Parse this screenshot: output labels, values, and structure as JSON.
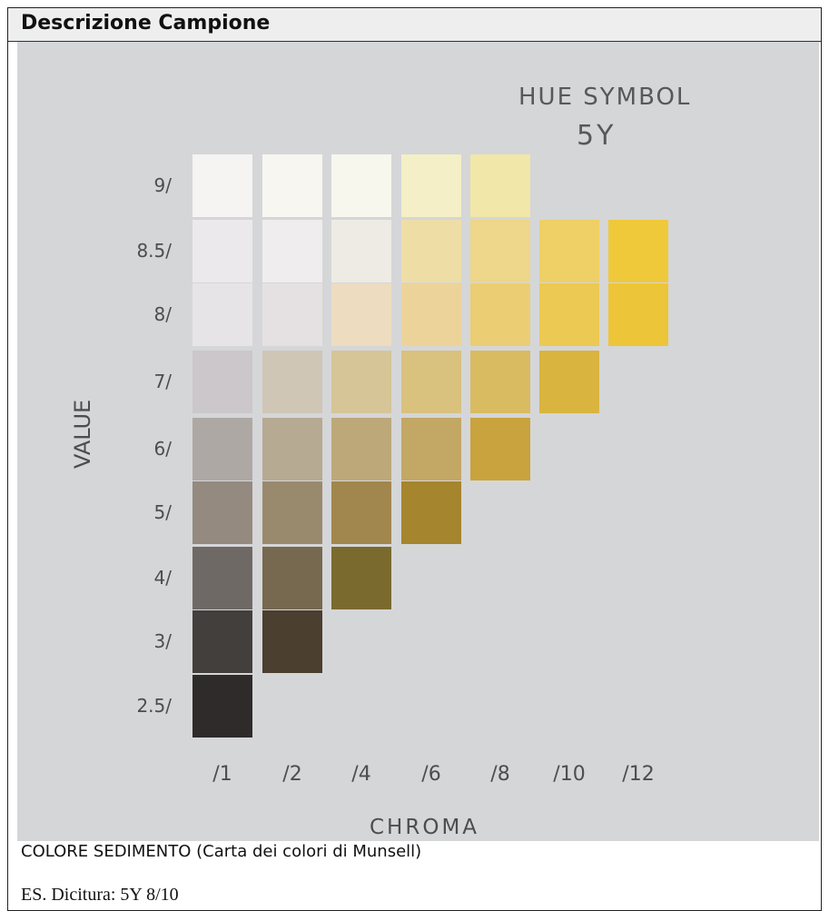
{
  "header": {
    "title": "Descrizione Campione"
  },
  "chart": {
    "hue_label": "HUE SYMBOL",
    "hue_value": "5Y",
    "y_axis_title": "VALUE",
    "x_axis_title": "CHROMA"
  },
  "chart_data": {
    "type": "heatmap",
    "title": "HUE SYMBOL 5Y",
    "xlabel": "CHROMA",
    "ylabel": "VALUE",
    "x_ticks": [
      "/1",
      "/2",
      "/4",
      "/6",
      "/8",
      "/10",
      "/12"
    ],
    "y_ticks": [
      "9/",
      "8.5/",
      "8/",
      "7/",
      "6/",
      "5/",
      "4/",
      "3/",
      "2.5/"
    ],
    "chips": [
      {
        "value": "9/",
        "chroma": "/1",
        "color": "#f5f4f3"
      },
      {
        "value": "9/",
        "chroma": "/2",
        "color": "#f7f6f1"
      },
      {
        "value": "9/",
        "chroma": "/4",
        "color": "#f8f7ee"
      },
      {
        "value": "9/",
        "chroma": "/6",
        "color": "#f4efc6"
      },
      {
        "value": "9/",
        "chroma": "/8",
        "color": "#f1e7a8"
      },
      {
        "value": "8.5/",
        "chroma": "/1",
        "color": "#ebe9eb"
      },
      {
        "value": "8.5/",
        "chroma": "/2",
        "color": "#efeded"
      },
      {
        "value": "8.5/",
        "chroma": "/4",
        "color": "#eeebe4"
      },
      {
        "value": "8.5/",
        "chroma": "/6",
        "color": "#efdda6"
      },
      {
        "value": "8.5/",
        "chroma": "/8",
        "color": "#eed68a"
      },
      {
        "value": "8.5/",
        "chroma": "/10",
        "color": "#eed066"
      },
      {
        "value": "8.5/",
        "chroma": "/12",
        "color": "#efc93a"
      },
      {
        "value": "8/",
        "chroma": "/1",
        "color": "#e7e4e7"
      },
      {
        "value": "8/",
        "chroma": "/2",
        "color": "#e5e1e3"
      },
      {
        "value": "8/",
        "chroma": "/4",
        "color": "#eddcc0"
      },
      {
        "value": "8/",
        "chroma": "/6",
        "color": "#ecd399"
      },
      {
        "value": "8/",
        "chroma": "/8",
        "color": "#ebcd74"
      },
      {
        "value": "8/",
        "chroma": "/10",
        "color": "#ebc953"
      },
      {
        "value": "8/",
        "chroma": "/12",
        "color": "#edc538"
      },
      {
        "value": "7/",
        "chroma": "/1",
        "color": "#cbc7ca"
      },
      {
        "value": "7/",
        "chroma": "/2",
        "color": "#cfc6b6"
      },
      {
        "value": "7/",
        "chroma": "/4",
        "color": "#d6c597"
      },
      {
        "value": "7/",
        "chroma": "/6",
        "color": "#d9c17e"
      },
      {
        "value": "7/",
        "chroma": "/8",
        "color": "#d9bb62"
      },
      {
        "value": "7/",
        "chroma": "/10",
        "color": "#d9b43f"
      },
      {
        "value": "6/",
        "chroma": "/1",
        "color": "#aea8a4"
      },
      {
        "value": "6/",
        "chroma": "/2",
        "color": "#b6aa92"
      },
      {
        "value": "6/",
        "chroma": "/4",
        "color": "#bda87a"
      },
      {
        "value": "6/",
        "chroma": "/6",
        "color": "#c3a765"
      },
      {
        "value": "6/",
        "chroma": "/8",
        "color": "#c9a33e"
      },
      {
        "value": "5/",
        "chroma": "/1",
        "color": "#948a80"
      },
      {
        "value": "5/",
        "chroma": "/2",
        "color": "#998a6e"
      },
      {
        "value": "5/",
        "chroma": "/4",
        "color": "#a1874e"
      },
      {
        "value": "5/",
        "chroma": "/6",
        "color": "#a5852e"
      },
      {
        "value": "4/",
        "chroma": "/1",
        "color": "#6f6965"
      },
      {
        "value": "4/",
        "chroma": "/2",
        "color": "#76694f"
      },
      {
        "value": "4/",
        "chroma": "/4",
        "color": "#7b6a2d"
      },
      {
        "value": "3/",
        "chroma": "/1",
        "color": "#433f3d"
      },
      {
        "value": "3/",
        "chroma": "/2",
        "color": "#4b3f30"
      },
      {
        "value": "2.5/",
        "chroma": "/1",
        "color": "#2f2b2b"
      }
    ]
  },
  "caption": "COLORE SEDIMENTO (Carta dei colori di Munsell)",
  "example": "ES. Dicitura: 5Y 8/10"
}
